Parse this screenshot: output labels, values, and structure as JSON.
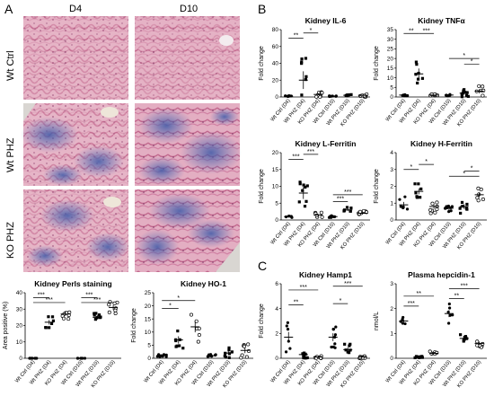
{
  "panels": {
    "a": "A",
    "b": "B",
    "c": "C"
  },
  "histology": {
    "col_labels": [
      "D4",
      "D10"
    ],
    "row_labels": [
      "Wt Ctrl",
      "Wt PHZ",
      "KO PHZ"
    ],
    "colors": {
      "tissue": "#d48aa6",
      "tissue_light": "#ecc0cf",
      "blue": "#4a64b0",
      "bg": "#efe6ea"
    }
  },
  "x_labels6": [
    "Wt Ctrl (D4)",
    "Wt PHZ (D4)",
    "KO PHZ (D4)",
    "Wt Ctrl (D10)",
    "Wt PHZ (D10)",
    "KO PHZ (D10)"
  ],
  "chart_data": [
    {
      "id": "perls",
      "type": "scatter",
      "title": "Kidney Perls staining",
      "ylabel": "Area positive (%)",
      "ylim": [
        0,
        40
      ],
      "yticks": [
        0,
        10,
        20,
        30,
        40
      ],
      "means": [
        0,
        22,
        27,
        0,
        25,
        31
      ],
      "open": [
        2,
        5
      ]
    },
    {
      "id": "ho1",
      "type": "scatter",
      "title": "Kidney HO-1",
      "title_gene": "HO-1",
      "ylabel": "Fold change",
      "ylim": [
        0,
        25
      ],
      "yticks": [
        0,
        5,
        10,
        15,
        20,
        25
      ],
      "means": [
        1,
        7,
        12,
        1,
        2,
        3
      ],
      "open": [
        2,
        5
      ]
    },
    {
      "id": "il6",
      "type": "scatter",
      "title": "Kidney IL-6",
      "title_gene": "IL-6",
      "ylabel": "Fold change",
      "ylim": [
        0,
        80
      ],
      "yticks": [
        0,
        20,
        40,
        60,
        80
      ],
      "means": [
        1,
        20,
        3,
        1,
        2,
        2
      ],
      "open": [
        2,
        5
      ]
    },
    {
      "id": "tnfa",
      "type": "scatter",
      "title": "Kidney TNFα",
      "title_gene": "TNFα",
      "ylabel": "Fold change",
      "ylim": [
        0,
        35
      ],
      "yticks": [
        0,
        5,
        10,
        15,
        20,
        25,
        30,
        35
      ],
      "means": [
        1,
        12,
        1,
        1,
        2,
        3
      ],
      "open": [
        2,
        5
      ]
    },
    {
      "id": "lfer",
      "type": "scatter",
      "title": "Kidney L-Ferritin",
      "title_gene": "L-Ferritin",
      "ylabel": "Fold change",
      "ylim": [
        0,
        20
      ],
      "yticks": [
        0,
        5,
        10,
        15,
        20
      ],
      "means": [
        1,
        8,
        1.5,
        1,
        3,
        2
      ],
      "open": [
        2,
        5
      ]
    },
    {
      "id": "hfer",
      "type": "scatter",
      "title": "Kidney H-Ferritin",
      "title_gene": "H-Ferritin",
      "ylabel": "Fold change",
      "ylim": [
        0,
        4
      ],
      "yticks": [
        0,
        1,
        2,
        3,
        4
      ],
      "means": [
        0.9,
        1.7,
        0.8,
        0.7,
        0.8,
        1.5
      ],
      "open": [
        2,
        5
      ]
    },
    {
      "id": "hamp1",
      "type": "scatter",
      "title": "Kidney Hamp1",
      "title_gene": "Hamp1",
      "ylabel": "Fold change",
      "ylim": [
        0,
        6
      ],
      "yticks": [
        0,
        2,
        4,
        6
      ],
      "means": [
        1.7,
        0.3,
        0.1,
        1.7,
        0.7,
        0.1
      ],
      "open": [
        2,
        5
      ]
    },
    {
      "id": "hepc",
      "type": "scatter",
      "title": "Plasma hepcidin-1",
      "ylabel": "nmol/L",
      "ylim": [
        0,
        3
      ],
      "yticks": [
        0,
        1,
        2,
        3
      ],
      "means": [
        1.5,
        0.05,
        0.2,
        1.8,
        0.8,
        0.6
      ],
      "open": [
        2,
        5
      ]
    }
  ],
  "sig": {
    "s1": "*",
    "s2": "**",
    "s3": "***"
  }
}
